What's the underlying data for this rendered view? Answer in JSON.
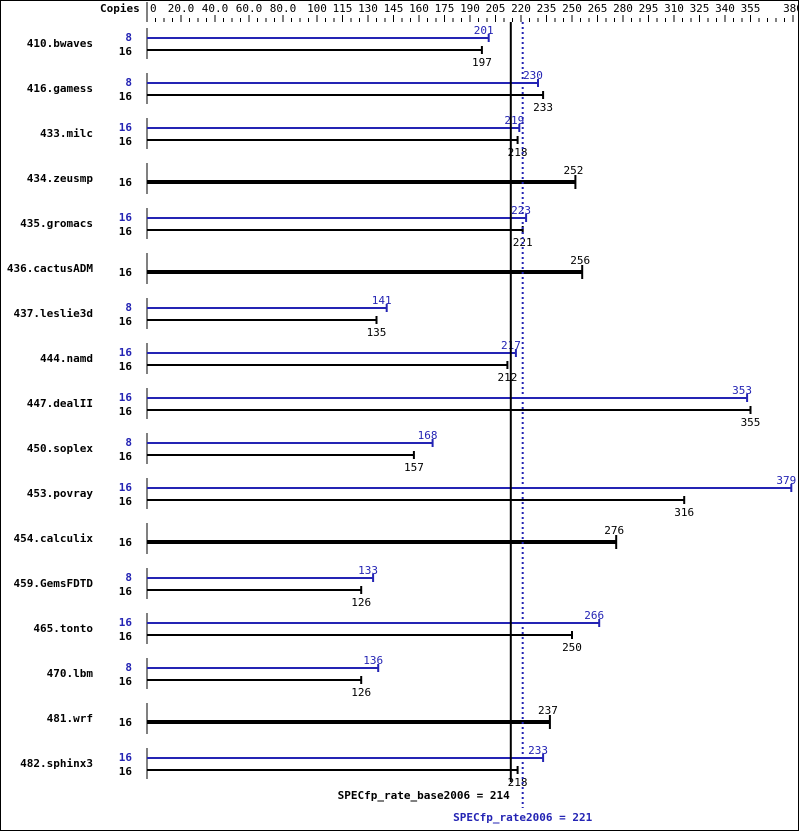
{
  "chart_data": {
    "type": "bar",
    "orientation": "horizontal",
    "axis_title": "Copies",
    "xlim": [
      0,
      380
    ],
    "tick_labels": [
      "0",
      "20.0",
      "40.0",
      "60.0",
      "80.0",
      "100",
      "115",
      "130",
      "145",
      "160",
      "175",
      "190",
      "205",
      "220",
      "235",
      "250",
      "265",
      "280",
      "295",
      "310",
      "325",
      "340",
      "355",
      "380"
    ],
    "tick_values": [
      0,
      20,
      40,
      60,
      80,
      100,
      115,
      130,
      145,
      160,
      175,
      190,
      205,
      220,
      235,
      250,
      265,
      280,
      295,
      310,
      325,
      340,
      355,
      380
    ],
    "colors": {
      "base": "#000000",
      "peak": "#2424b4"
    },
    "benchmarks": [
      {
        "name": "410.bwaves",
        "peak": {
          "copies": "8",
          "value": 201
        },
        "base": {
          "copies": "16",
          "value": 197
        }
      },
      {
        "name": "416.gamess",
        "peak": {
          "copies": "8",
          "value": 230
        },
        "base": {
          "copies": "16",
          "value": 233
        }
      },
      {
        "name": "433.milc",
        "peak": {
          "copies": "16",
          "value": 219
        },
        "base": {
          "copies": "16",
          "value": 218
        }
      },
      {
        "name": "434.zeusmp",
        "base": {
          "copies": "16",
          "value": 252
        }
      },
      {
        "name": "435.gromacs",
        "peak": {
          "copies": "16",
          "value": 223
        },
        "base": {
          "copies": "16",
          "value": 221
        }
      },
      {
        "name": "436.cactusADM",
        "base": {
          "copies": "16",
          "value": 256
        }
      },
      {
        "name": "437.leslie3d",
        "peak": {
          "copies": "8",
          "value": 141
        },
        "base": {
          "copies": "16",
          "value": 135
        }
      },
      {
        "name": "444.namd",
        "peak": {
          "copies": "16",
          "value": 217
        },
        "base": {
          "copies": "16",
          "value": 212
        }
      },
      {
        "name": "447.dealII",
        "peak": {
          "copies": "16",
          "value": 353
        },
        "base": {
          "copies": "16",
          "value": 355
        }
      },
      {
        "name": "450.soplex",
        "peak": {
          "copies": "8",
          "value": 168
        },
        "base": {
          "copies": "16",
          "value": 157
        }
      },
      {
        "name": "453.povray",
        "peak": {
          "copies": "16",
          "value": 379
        },
        "base": {
          "copies": "16",
          "value": 316
        }
      },
      {
        "name": "454.calculix",
        "base": {
          "copies": "16",
          "value": 276
        }
      },
      {
        "name": "459.GemsFDTD",
        "peak": {
          "copies": "8",
          "value": 133
        },
        "base": {
          "copies": "16",
          "value": 126
        }
      },
      {
        "name": "465.tonto",
        "peak": {
          "copies": "16",
          "value": 266
        },
        "base": {
          "copies": "16",
          "value": 250
        }
      },
      {
        "name": "470.lbm",
        "peak": {
          "copies": "8",
          "value": 136
        },
        "base": {
          "copies": "16",
          "value": 126
        }
      },
      {
        "name": "481.wrf",
        "base": {
          "copies": "16",
          "value": 237
        }
      },
      {
        "name": "482.sphinx3",
        "peak": {
          "copies": "16",
          "value": 233
        },
        "base": {
          "copies": "16",
          "value": 218
        }
      }
    ],
    "summary": {
      "base": {
        "label": "SPECfp_rate_base2006 = 214",
        "value": 214
      },
      "peak": {
        "label": "SPECfp_rate2006 = 221",
        "value": 221
      }
    }
  }
}
